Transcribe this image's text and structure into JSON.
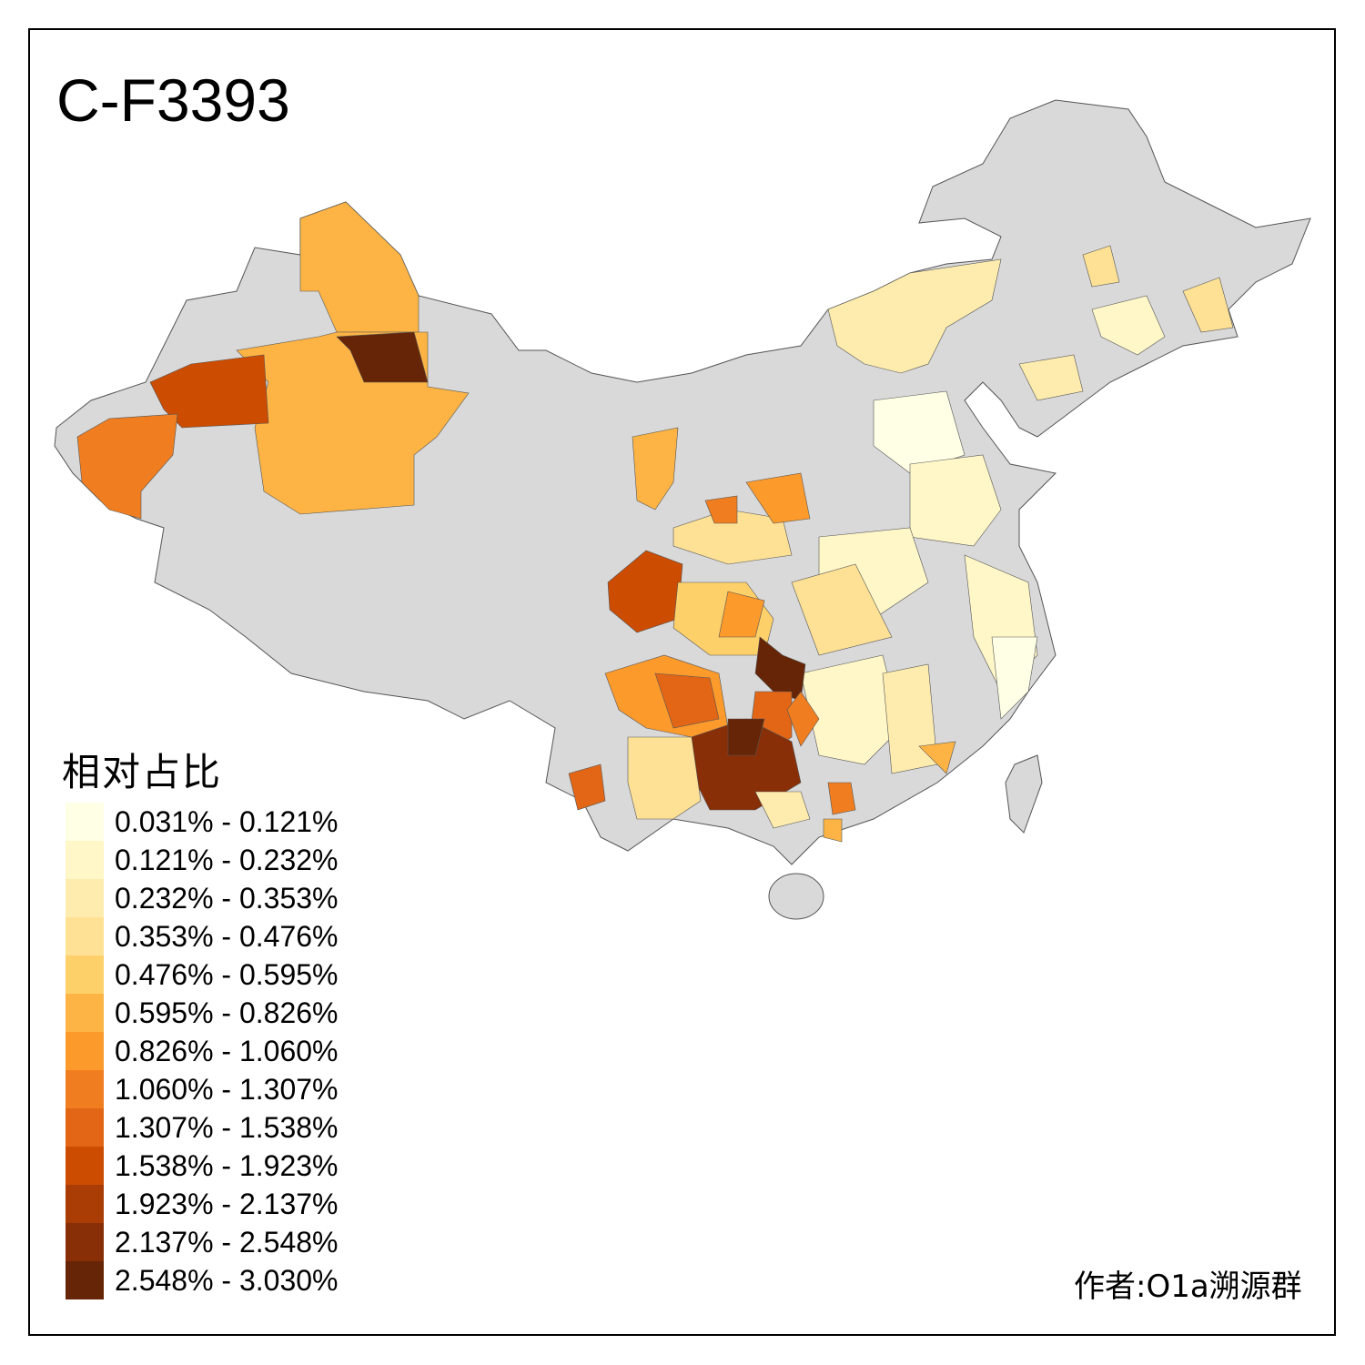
{
  "title": "C-F3393",
  "legend": {
    "title": "相对占比",
    "classes": [
      {
        "label": "0.031% - 0.121%",
        "color": "#FFFFE5"
      },
      {
        "label": "0.121% - 0.232%",
        "color": "#FFF7C8"
      },
      {
        "label": "0.232% - 0.353%",
        "color": "#FEECAE"
      },
      {
        "label": "0.353% - 0.476%",
        "color": "#FEE195"
      },
      {
        "label": "0.476% - 0.595%",
        "color": "#FED06A"
      },
      {
        "label": "0.595% - 0.826%",
        "color": "#FDB444"
      },
      {
        "label": "0.826% - 1.060%",
        "color": "#FC9A2C"
      },
      {
        "label": "1.060% - 1.307%",
        "color": "#F07E20"
      },
      {
        "label": "1.307% - 1.538%",
        "color": "#E26616"
      },
      {
        "label": "1.538% - 1.923%",
        "color": "#CC4C02"
      },
      {
        "label": "1.923% - 2.137%",
        "color": "#AA3C05"
      },
      {
        "label": "2.137% - 2.548%",
        "color": "#882F07"
      },
      {
        "label": "2.548% - 3.030%",
        "color": "#662506"
      }
    ]
  },
  "author": "作者:O1a溯源群",
  "colors": {
    "no_data": "#D9D9D9",
    "border": "#555555"
  }
}
